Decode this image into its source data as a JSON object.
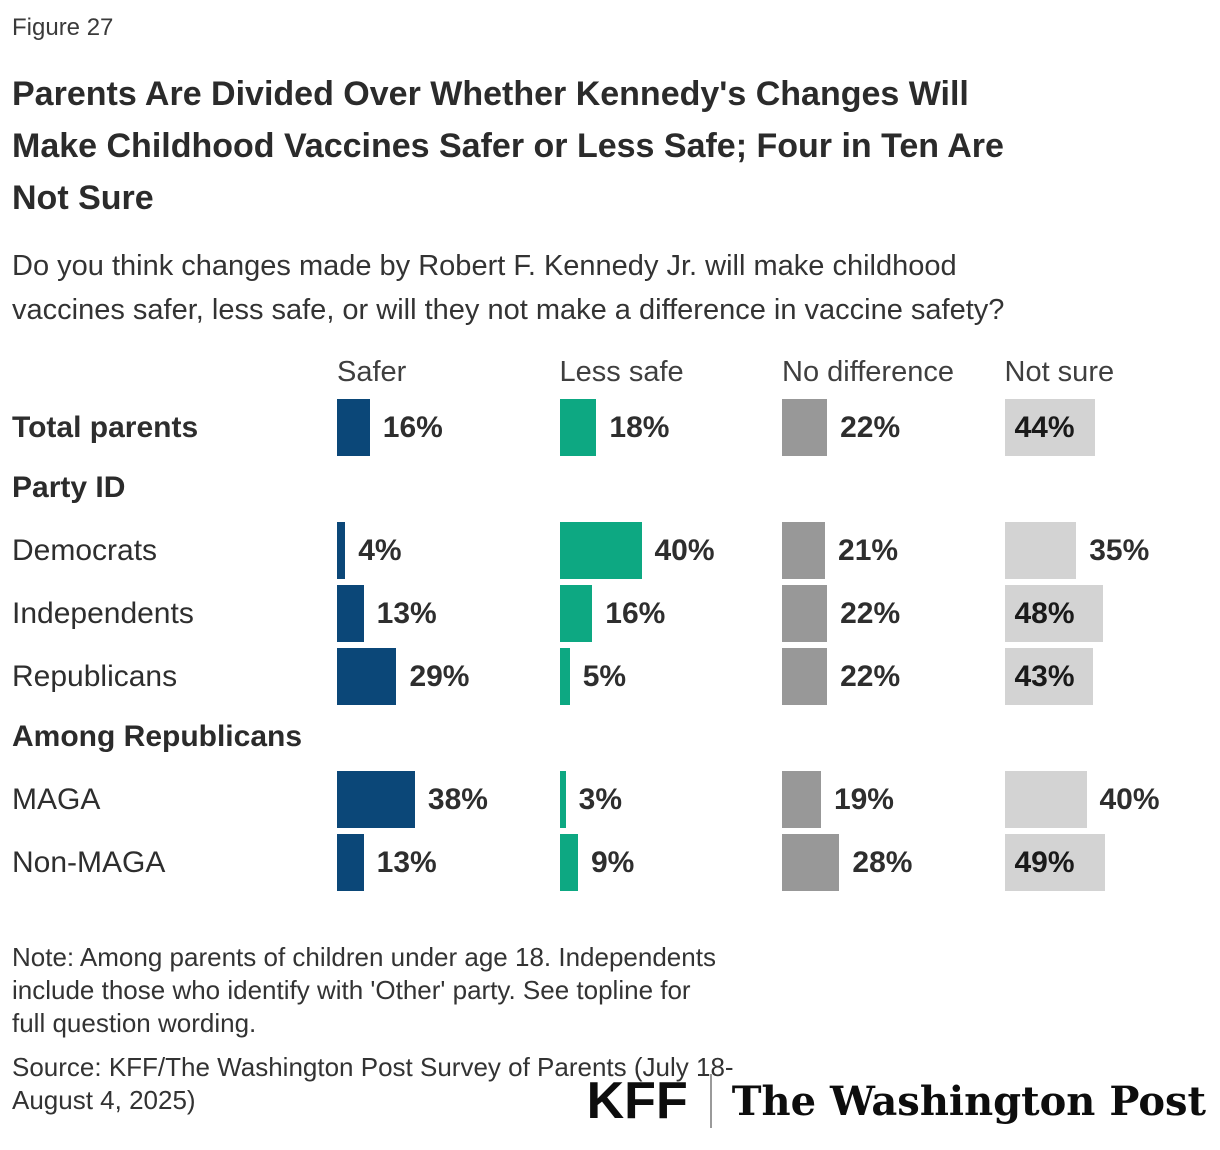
{
  "figure_label": "Figure 27",
  "title": {
    "lines": [
      "Parents Are Divided Over Whether Kennedy's Changes Will",
      "Make Childhood Vaccines Safer or Less Safe; Four in Ten Are",
      "Not Sure"
    ]
  },
  "subtitle": {
    "lines": [
      "Do you think changes made by Robert F. Kennedy Jr. will make childhood",
      "vaccines safer, less safe, or will they not make a difference in vaccine safety?"
    ]
  },
  "chart_data": {
    "type": "bar",
    "orientation": "horizontal",
    "value_suffix": "%",
    "xlim": [
      0,
      100
    ],
    "label_inside_threshold": 41,
    "columns": [
      {
        "label": "Safer",
        "color": "#0B4778"
      },
      {
        "label": "Less safe",
        "color": "#0DA882"
      },
      {
        "label": "No difference",
        "color": "#989898"
      },
      {
        "label": "Not sure",
        "color": "#D3D3D3"
      }
    ],
    "rows": [
      {
        "kind": "data",
        "label": "Total parents",
        "bold": true,
        "values": [
          16,
          18,
          22,
          44
        ]
      },
      {
        "kind": "section",
        "label": "Party ID"
      },
      {
        "kind": "data",
        "label": "Democrats",
        "bold": false,
        "values": [
          4,
          40,
          21,
          35
        ]
      },
      {
        "kind": "data",
        "label": "Independents",
        "bold": false,
        "values": [
          13,
          16,
          22,
          48
        ]
      },
      {
        "kind": "data",
        "label": "Republicans",
        "bold": false,
        "values": [
          29,
          5,
          22,
          43
        ]
      },
      {
        "kind": "section",
        "label": "Among Republicans"
      },
      {
        "kind": "data",
        "label": "MAGA",
        "bold": false,
        "values": [
          38,
          3,
          19,
          40
        ]
      },
      {
        "kind": "data",
        "label": "Non-MAGA",
        "bold": false,
        "values": [
          13,
          9,
          28,
          49
        ]
      }
    ]
  },
  "note": {
    "lines": [
      "Note: Among parents of children under age 18. Independents",
      "include those who identify with 'Other' party. See topline for",
      "full question wording."
    ]
  },
  "source": {
    "lines": [
      "Source: KFF/The Washington Post Survey of Parents (July 18-",
      "August 4, 2025)"
    ]
  },
  "logos": {
    "kff": "KFF",
    "washington_post": "The Washington Post"
  }
}
